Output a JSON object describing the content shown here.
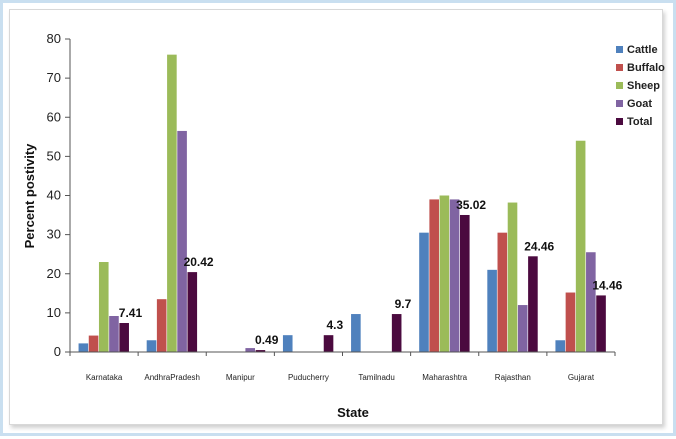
{
  "chart_data": {
    "type": "bar",
    "xlabel": "State",
    "ylabel": "Percent postivity",
    "ylim": [
      0,
      80
    ],
    "yticks": [
      0,
      10,
      20,
      30,
      40,
      50,
      60,
      70,
      80
    ],
    "grid": false,
    "legend_position": "right",
    "categories": [
      "Karnataka",
      "AndhraPradesh",
      "Manipur",
      "Puducherry",
      "Tamilnadu",
      "Maharashtra",
      "Rajasthan",
      "Gujarat"
    ],
    "series": [
      {
        "name": "Cattle",
        "color": "#4f81bd",
        "values": [
          2.2,
          3.0,
          0,
          4.3,
          9.7,
          30.5,
          21.0,
          3.0
        ]
      },
      {
        "name": "Buffalo",
        "color": "#c0504d",
        "values": [
          4.2,
          13.5,
          0,
          0,
          0,
          39.0,
          30.5,
          15.2
        ]
      },
      {
        "name": "Sheep",
        "color": "#9bbb59",
        "values": [
          23.0,
          76.0,
          0,
          0,
          0,
          40.0,
          38.2,
          54.0
        ]
      },
      {
        "name": "Goat",
        "color": "#8064a2",
        "values": [
          9.2,
          56.5,
          1.0,
          0,
          0,
          39.0,
          12.0,
          25.5
        ]
      },
      {
        "name": "Total",
        "color": "#4b0a3f",
        "values": [
          7.41,
          20.42,
          0.49,
          4.3,
          9.7,
          35.02,
          24.46,
          14.46
        ]
      }
    ],
    "data_labels": [
      "7.41",
      "20.42",
      "0.49",
      "4.3",
      "9.7",
      "35.02",
      "24.46",
      "14.46"
    ]
  }
}
